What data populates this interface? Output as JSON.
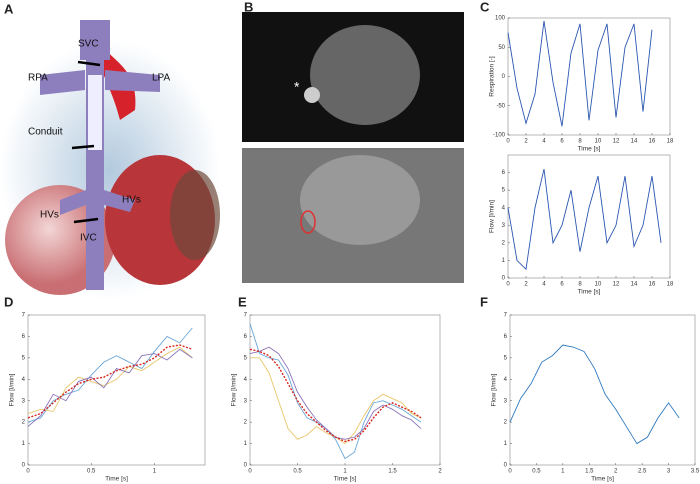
{
  "panel_labels": [
    "A",
    "B",
    "C",
    "D",
    "E",
    "F"
  ],
  "illustration": {
    "labels": [
      "SVC",
      "RPA",
      "LPA",
      "Conduit",
      "HVs",
      "HVs",
      "IVC"
    ],
    "mri_marker": "*"
  },
  "chart_data": [
    {
      "type": "line",
      "ylabel": "Respiration [-]",
      "xlabel": "Time [s]",
      "x": [
        0,
        1,
        2,
        3,
        4,
        5,
        6,
        7,
        8,
        9,
        10,
        11,
        12,
        13,
        14,
        15,
        16
      ],
      "series": [
        {
          "color": "#2a56b0",
          "values": [
            75,
            -20,
            -80,
            -30,
            95,
            -10,
            -85,
            40,
            90,
            -75,
            45,
            90,
            -70,
            50,
            90,
            -60,
            80
          ]
        }
      ],
      "xlim": [
        0,
        18
      ],
      "xticks": [
        0,
        2,
        4,
        6,
        8,
        10,
        12,
        14,
        16,
        18
      ],
      "ylim": [
        -100,
        100
      ],
      "yticks": [
        -100,
        -50,
        0,
        50,
        100
      ]
    },
    {
      "type": "line",
      "ylabel": "Flow [l/min]",
      "xlabel": "Time [s]",
      "x": [
        0,
        1,
        2,
        3,
        4,
        5,
        6,
        7,
        8,
        9,
        10,
        11,
        12,
        13,
        14,
        15,
        16,
        17
      ],
      "series": [
        {
          "color": "#2a56b0",
          "values": [
            4,
            1,
            0.5,
            4,
            6.2,
            2,
            3,
            5,
            1.5,
            4,
            5.8,
            2,
            3,
            5.8,
            1.8,
            3,
            5.8,
            2
          ]
        }
      ],
      "xlim": [
        0,
        18
      ],
      "xticks": [
        0,
        2,
        4,
        6,
        8,
        10,
        12,
        14,
        16,
        18
      ],
      "ylim": [
        0,
        7
      ],
      "yticks": [
        0,
        1,
        2,
        3,
        4,
        5,
        6
      ]
    },
    {
      "type": "line",
      "ylabel": "Flow [l/min]",
      "xlabel": "Time [s]",
      "x": [
        0,
        0.1,
        0.2,
        0.3,
        0.4,
        0.5,
        0.6,
        0.7,
        0.8,
        0.9,
        1,
        1.1,
        1.2,
        1.3
      ],
      "series": [
        {
          "color": "#6aa6d8",
          "values": [
            2.0,
            2.2,
            3.0,
            3.3,
            3.5,
            4.2,
            4.8,
            5.1,
            4.8,
            4.5,
            5.3,
            6.0,
            5.7,
            6.4
          ]
        },
        {
          "color": "#e8c66a",
          "values": [
            2.4,
            2.6,
            2.5,
            3.6,
            4.1,
            3.9,
            3.7,
            4.0,
            4.6,
            4.4,
            4.8,
            5.2,
            5.5,
            5.0
          ]
        },
        {
          "color": "#8a72b8",
          "values": [
            1.8,
            2.3,
            3.3,
            3.0,
            3.9,
            4.1,
            3.6,
            4.5,
            4.3,
            5.1,
            5.2,
            4.9,
            5.4,
            5.0
          ]
        },
        {
          "color": "#d7261e",
          "style": "dashed",
          "values": [
            2.2,
            2.4,
            2.9,
            3.4,
            3.8,
            4.0,
            4.1,
            4.4,
            4.6,
            4.7,
            5.0,
            5.5,
            5.6,
            5.4
          ]
        }
      ],
      "xlim": [
        0,
        1.4
      ],
      "xticks": [
        0,
        0.5,
        1
      ],
      "ylim": [
        0,
        7
      ],
      "yticks": [
        0,
        1,
        2,
        3,
        4,
        5,
        6,
        7
      ]
    },
    {
      "type": "line",
      "ylabel": "Flow [l/min]",
      "xlabel": "Time [s]",
      "x": [
        0,
        0.1,
        0.2,
        0.3,
        0.4,
        0.5,
        0.6,
        0.7,
        0.8,
        0.9,
        1,
        1.1,
        1.2,
        1.3,
        1.4,
        1.5,
        1.6,
        1.7,
        1.8
      ],
      "series": [
        {
          "color": "#6aa6d8",
          "values": [
            6.6,
            5.2,
            5.0,
            4.9,
            4.2,
            2.9,
            2.2,
            2.0,
            1.7,
            1.2,
            0.3,
            0.6,
            2.0,
            2.9,
            3.0,
            2.8,
            2.6,
            2.3,
            2.0
          ]
        },
        {
          "color": "#e8c66a",
          "values": [
            5.0,
            5.0,
            4.3,
            3.0,
            1.7,
            1.2,
            1.4,
            1.8,
            1.5,
            1.3,
            1.0,
            1.5,
            2.3,
            3.0,
            3.3,
            3.1,
            2.9,
            2.4,
            2.2
          ]
        },
        {
          "color": "#8a72b8",
          "values": [
            5.2,
            5.3,
            5.5,
            5.2,
            4.5,
            3.4,
            2.7,
            2.1,
            1.7,
            1.3,
            1.2,
            1.3,
            1.7,
            2.5,
            2.8,
            2.6,
            2.3,
            2.1,
            1.7
          ]
        },
        {
          "color": "#d7261e",
          "style": "dashed",
          "values": [
            5.4,
            5.3,
            5.1,
            4.6,
            3.8,
            3.0,
            2.4,
            2.0,
            1.6,
            1.3,
            1.1,
            1.2,
            1.6,
            2.2,
            2.7,
            2.9,
            2.7,
            2.5,
            2.2
          ]
        }
      ],
      "xlim": [
        0,
        2
      ],
      "xticks": [
        0,
        0.5,
        1,
        1.5,
        2
      ],
      "ylim": [
        0,
        7
      ],
      "yticks": [
        0,
        1,
        2,
        3,
        4,
        5,
        6,
        7
      ]
    },
    {
      "type": "line",
      "ylabel": "Flow [l/min]",
      "xlabel": "Time [s]",
      "x": [
        0,
        0.2,
        0.4,
        0.6,
        0.8,
        1,
        1.2,
        1.4,
        1.6,
        1.8,
        2,
        2.2,
        2.4,
        2.6,
        2.8,
        3,
        3.2
      ],
      "series": [
        {
          "color": "#2f7bbf",
          "values": [
            2.0,
            3.1,
            3.8,
            4.8,
            5.1,
            5.6,
            5.5,
            5.3,
            4.5,
            3.3,
            2.6,
            1.8,
            1.0,
            1.3,
            2.2,
            2.9,
            2.2
          ]
        }
      ],
      "xlim": [
        0,
        3.5
      ],
      "xticks": [
        0,
        0.5,
        1,
        1.5,
        2,
        2.5,
        3,
        3.5
      ],
      "ylim": [
        0,
        7
      ],
      "yticks": [
        0,
        1,
        2,
        3,
        4,
        5,
        6,
        7
      ]
    }
  ]
}
